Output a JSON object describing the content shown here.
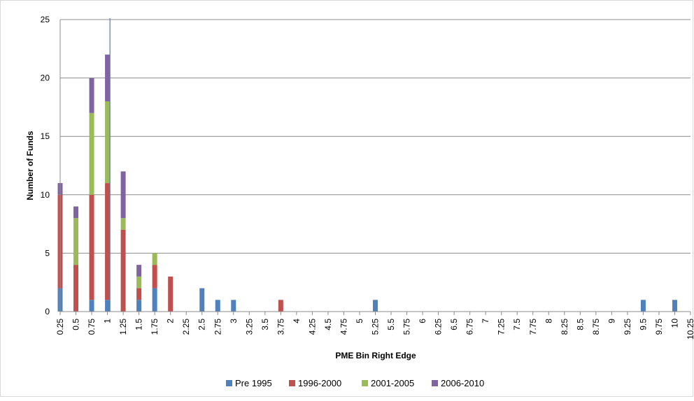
{
  "chart_data": {
    "type": "bar",
    "stacked": true,
    "xlabel": "PME Bin Right Edge",
    "ylabel": "Number of Funds",
    "ylim": [
      0,
      25
    ],
    "yticks": [
      0,
      5,
      10,
      15,
      20,
      25
    ],
    "grid": true,
    "legend_position": "bottom",
    "reference_line_x": 1.04,
    "categories": [
      "0.25",
      "0.5",
      "0.75",
      "1",
      "1.25",
      "1.5",
      "1.75",
      "2",
      "2.25",
      "2.5",
      "2.75",
      "3",
      "3.25",
      "3.5",
      "3.75",
      "4",
      "4.25",
      "4.5",
      "4.75",
      "5",
      "5.25",
      "5.5",
      "5.75",
      "6",
      "6.25",
      "6.5",
      "6.75",
      "7",
      "7.25",
      "7.5",
      "7.75",
      "8",
      "8.25",
      "8.5",
      "8.75",
      "9",
      "9.25",
      "9.5",
      "9.75",
      "10",
      "10.25"
    ],
    "series": [
      {
        "name": "Pre 1995",
        "color": "#4f81bd",
        "values": [
          2,
          0,
          1,
          1,
          0,
          1,
          2,
          0,
          0,
          2,
          1,
          1,
          0,
          0,
          0,
          0,
          0,
          0,
          0,
          0,
          1,
          0,
          0,
          0,
          0,
          0,
          0,
          0,
          0,
          0,
          0,
          0,
          0,
          0,
          0,
          0,
          0,
          1,
          0,
          1,
          0
        ]
      },
      {
        "name": "1996-2000",
        "color": "#c0504d",
        "values": [
          8,
          4,
          9,
          10,
          7,
          1,
          2,
          3,
          0,
          0,
          0,
          0,
          0,
          0,
          1,
          0,
          0,
          0,
          0,
          0,
          0,
          0,
          0,
          0,
          0,
          0,
          0,
          0,
          0,
          0,
          0,
          0,
          0,
          0,
          0,
          0,
          0,
          0,
          0,
          0,
          0
        ]
      },
      {
        "name": "2001-2005",
        "color": "#9bbb59",
        "values": [
          0,
          4,
          7,
          7,
          1,
          1,
          1,
          0,
          0,
          0,
          0,
          0,
          0,
          0,
          0,
          0,
          0,
          0,
          0,
          0,
          0,
          0,
          0,
          0,
          0,
          0,
          0,
          0,
          0,
          0,
          0,
          0,
          0,
          0,
          0,
          0,
          0,
          0,
          0,
          0,
          0
        ]
      },
      {
        "name": "2006-2010",
        "color": "#8064a2",
        "values": [
          1,
          1,
          3,
          4,
          4,
          1,
          0,
          0,
          0,
          0,
          0,
          0,
          0,
          0,
          0,
          0,
          0,
          0,
          0,
          0,
          0,
          0,
          0,
          0,
          0,
          0,
          0,
          0,
          0,
          0,
          0,
          0,
          0,
          0,
          0,
          0,
          0,
          0,
          0,
          0,
          0
        ]
      }
    ]
  }
}
